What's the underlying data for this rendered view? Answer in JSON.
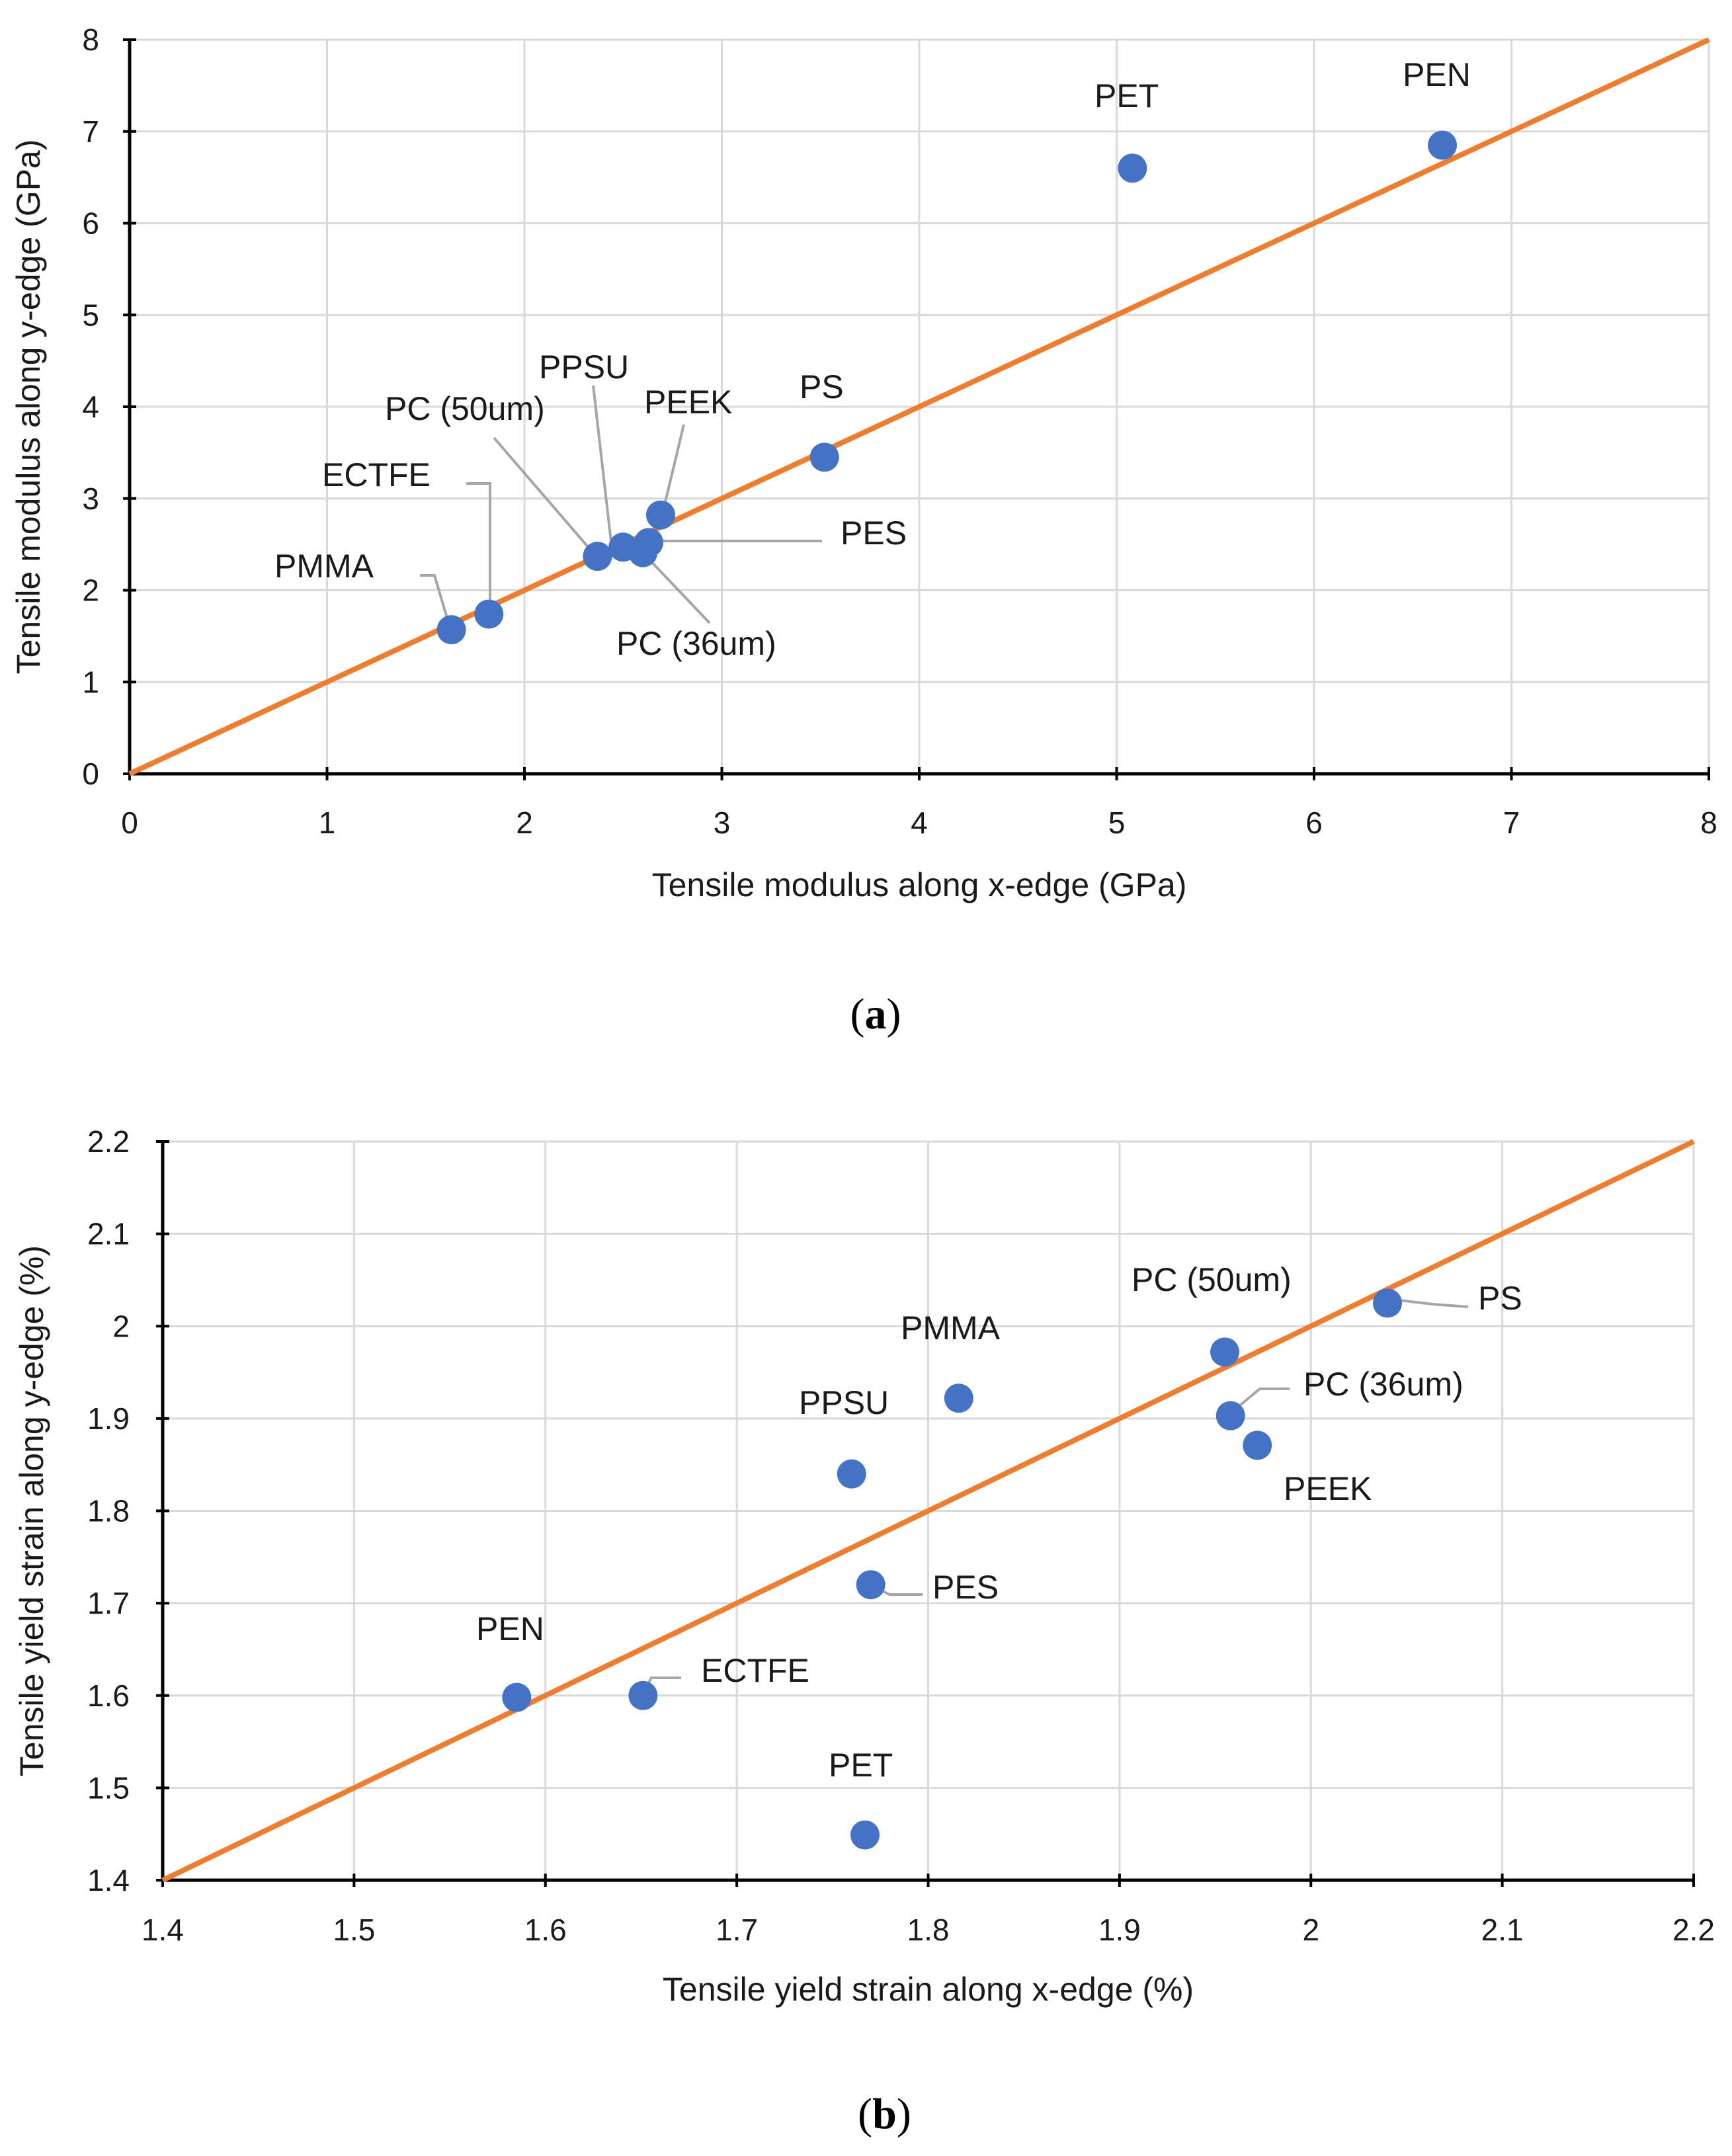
{
  "chart_data": [
    {
      "type": "scatter",
      "caption_letter": "a",
      "xlabel": "Tensile modulus along x-edge (GPa)",
      "ylabel": "Tensile modulus along y-edge (GPa)",
      "xlim": [
        0,
        8
      ],
      "ylim": [
        0,
        8
      ],
      "xticks": [
        "0",
        "1",
        "2",
        "3",
        "4",
        "5",
        "6",
        "7",
        "8"
      ],
      "yticks": [
        "0",
        "1",
        "2",
        "3",
        "4",
        "5",
        "6",
        "7",
        "8"
      ],
      "grid": true,
      "reference_line": {
        "name": "y = x",
        "from": [
          0,
          0
        ],
        "to": [
          8,
          8
        ],
        "color": "#ED7D31"
      },
      "marker_color": "#4472C4",
      "points": [
        {
          "label": "PMMA",
          "x": 1.63,
          "y": 1.57
        },
        {
          "label": "ECTFE",
          "x": 1.82,
          "y": 1.74
        },
        {
          "label": "PC (50um)",
          "x": 2.37,
          "y": 2.37
        },
        {
          "label": "PPSU",
          "x": 2.5,
          "y": 2.47
        },
        {
          "label": "PC (36um)",
          "x": 2.6,
          "y": 2.41
        },
        {
          "label": "PES",
          "x": 2.63,
          "y": 2.52
        },
        {
          "label": "PEEK",
          "x": 2.69,
          "y": 2.82
        },
        {
          "label": "PS",
          "x": 3.52,
          "y": 3.45
        },
        {
          "label": "PET",
          "x": 5.08,
          "y": 6.6
        },
        {
          "label": "PEN",
          "x": 6.65,
          "y": 6.85
        }
      ]
    },
    {
      "type": "scatter",
      "caption_letter": "b",
      "xlabel": "Tensile yield strain along x-edge (%)",
      "ylabel": "Tensile yield strain along y-edge (%)",
      "xlim": [
        1.4,
        2.2
      ],
      "ylim": [
        1.4,
        2.2
      ],
      "xticks": [
        "1.4",
        "1.5",
        "1.6",
        "1.7",
        "1.8",
        "1.9",
        "2",
        "2.1",
        "2.2"
      ],
      "yticks": [
        "1.4",
        "1.5",
        "1.6",
        "1.7",
        "1.8",
        "1.9",
        "2",
        "2.1",
        "2.2"
      ],
      "grid": true,
      "reference_line": {
        "name": "y = x",
        "from": [
          1.4,
          1.4
        ],
        "to": [
          2.2,
          2.2
        ],
        "color": "#ED7D31"
      },
      "marker_color": "#4472C4",
      "points": [
        {
          "label": "PEN",
          "x": 1.585,
          "y": 1.598
        },
        {
          "label": "ECTFE",
          "x": 1.651,
          "y": 1.6
        },
        {
          "label": "PET",
          "x": 1.767,
          "y": 1.449
        },
        {
          "label": "PES",
          "x": 1.77,
          "y": 1.72
        },
        {
          "label": "PPSU",
          "x": 1.76,
          "y": 1.84
        },
        {
          "label": "PMMA",
          "x": 1.816,
          "y": 1.922
        },
        {
          "label": "PC (50um)",
          "x": 1.955,
          "y": 1.972
        },
        {
          "label": "PC (36um)",
          "x": 1.958,
          "y": 1.903
        },
        {
          "label": "PEEK",
          "x": 1.972,
          "y": 1.871
        },
        {
          "label": "PS",
          "x": 2.04,
          "y": 2.025
        }
      ]
    }
  ]
}
